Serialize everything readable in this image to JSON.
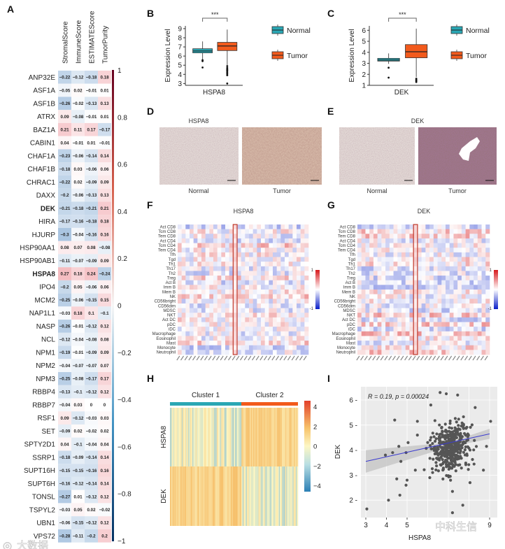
{
  "panel_labels": [
    "A",
    "B",
    "C",
    "D",
    "E",
    "F",
    "G",
    "H",
    "I"
  ],
  "watermarks": [
    "大数据",
    "中科生信"
  ],
  "colors": {
    "normal": "#2aa7b4",
    "tumor": "#f25a1c",
    "sig": "#e0303a",
    "corr_pos": "#c0392b",
    "corr_neg": "#2c5f9e",
    "highlight_dek": "#2cb5c0",
    "highlight_hspa8": "#e05a1a"
  },
  "chart_data": [
    {
      "panel": "A",
      "type": "heatmap",
      "columns": [
        "StromalScore",
        "ImmuneScore",
        "ESTIMATEScore",
        "TumorPurity"
      ],
      "highlight_rows": {
        "DEK": "highlight_dek",
        "HSPA8": "highlight_hspa8"
      },
      "colorbar_ticks": [
        "1",
        "0.8",
        "0.6",
        "0.4",
        "0.2",
        "0",
        "−0.2",
        "−0.4",
        "−0.6",
        "−0.8",
        "−1"
      ],
      "rows": [
        {
          "gene": "ANP32E",
          "values": [
            -0.22,
            -0.12,
            -0.18,
            0.18
          ]
        },
        {
          "gene": "ASF1A",
          "values": [
            -0.05,
            0.02,
            -0.01,
            0.01
          ]
        },
        {
          "gene": "ASF1B",
          "values": [
            -0.26,
            -0.02,
            -0.13,
            0.13
          ]
        },
        {
          "gene": "ATRX",
          "values": [
            0.09,
            -0.08,
            -0.01,
            0.01
          ]
        },
        {
          "gene": "BAZ1A",
          "values": [
            0.21,
            0.11,
            0.17,
            -0.17
          ]
        },
        {
          "gene": "CABIN1",
          "values": [
            0.04,
            -0.01,
            0.01,
            -0.01
          ]
        },
        {
          "gene": "CHAF1A",
          "values": [
            -0.23,
            -0.06,
            -0.14,
            0.14
          ]
        },
        {
          "gene": "CHAF1B",
          "values": [
            -0.18,
            0.03,
            -0.06,
            0.06
          ]
        },
        {
          "gene": "CHRAC1",
          "values": [
            -0.22,
            0.02,
            -0.09,
            0.09
          ]
        },
        {
          "gene": "DAXX",
          "values": [
            -0.2,
            -0.06,
            -0.13,
            0.13
          ]
        },
        {
          "gene": "DEK",
          "values": [
            -0.21,
            -0.18,
            -0.21,
            0.21
          ]
        },
        {
          "gene": "HIRA",
          "values": [
            -0.17,
            -0.16,
            -0.18,
            0.18
          ]
        },
        {
          "gene": "HJURP",
          "values": [
            -0.3,
            -0.04,
            -0.16,
            0.16
          ]
        },
        {
          "gene": "HSP90AA1",
          "values": [
            0.08,
            0.07,
            0.08,
            -0.08
          ]
        },
        {
          "gene": "HSP90AB1",
          "values": [
            -0.11,
            -0.07,
            -0.09,
            0.09
          ]
        },
        {
          "gene": "HSPA8",
          "values": [
            0.27,
            0.18,
            0.24,
            -0.24
          ]
        },
        {
          "gene": "IPO4",
          "values": [
            -0.2,
            0.05,
            -0.06,
            0.06
          ]
        },
        {
          "gene": "MCM2",
          "values": [
            -0.25,
            -0.06,
            -0.15,
            0.15
          ]
        },
        {
          "gene": "NAP1L1",
          "values": [
            -0.03,
            0.18,
            0.1,
            -0.1
          ]
        },
        {
          "gene": "NASP",
          "values": [
            -0.26,
            -0.01,
            -0.12,
            0.12
          ]
        },
        {
          "gene": "NCL",
          "values": [
            -0.12,
            -0.04,
            -0.08,
            0.08
          ]
        },
        {
          "gene": "NPM1",
          "values": [
            -0.19,
            -0.01,
            -0.09,
            0.09
          ]
        },
        {
          "gene": "NPM2",
          "values": [
            -0.04,
            -0.07,
            -0.07,
            0.07
          ]
        },
        {
          "gene": "NPM3",
          "values": [
            -0.25,
            -0.08,
            -0.17,
            0.17
          ]
        },
        {
          "gene": "RBBP4",
          "values": [
            -0.13,
            -0.1,
            -0.12,
            0.12
          ]
        },
        {
          "gene": "RBBP7",
          "values": [
            -0.04,
            0.03,
            0,
            0
          ]
        },
        {
          "gene": "RSF1",
          "values": [
            0.09,
            -0.12,
            -0.03,
            0.03
          ]
        },
        {
          "gene": "SET",
          "values": [
            -0.09,
            0.02,
            -0.02,
            0.02
          ]
        },
        {
          "gene": "SPTY2D1",
          "values": [
            0.04,
            -0.1,
            -0.04,
            0.04
          ]
        },
        {
          "gene": "SSRP1",
          "values": [
            -0.18,
            -0.09,
            -0.14,
            0.14
          ]
        },
        {
          "gene": "SUPT16H",
          "values": [
            -0.15,
            -0.15,
            -0.16,
            0.16
          ]
        },
        {
          "gene": "SUPT6H",
          "values": [
            -0.16,
            -0.12,
            -0.14,
            0.14
          ]
        },
        {
          "gene": "TONSL",
          "values": [
            -0.27,
            0.01,
            -0.12,
            0.12
          ]
        },
        {
          "gene": "TSPYL2",
          "values": [
            -0.03,
            0.05,
            0.02,
            -0.02
          ]
        },
        {
          "gene": "UBN1",
          "values": [
            -0.06,
            -0.15,
            -0.12,
            0.12
          ]
        },
        {
          "gene": "VPS72",
          "values": [
            -0.28,
            -0.11,
            -0.2,
            0.2
          ]
        }
      ]
    },
    {
      "panel": "B",
      "type": "box",
      "xlabel": "HSPA8",
      "ylabel": "Expression Level",
      "ylim": [
        2.8,
        9.3
      ],
      "yticks": [
        3,
        4,
        5,
        6,
        7,
        8,
        9
      ],
      "significance": "***",
      "legend": [
        "Normal",
        "Tumor"
      ],
      "boxes": [
        {
          "group": "Normal",
          "whisker_low": 5.6,
          "q1": 6.35,
          "median": 6.55,
          "q3": 6.8,
          "whisker_high": 7.6,
          "outliers": [
            4.75,
            5.45,
            5.55
          ]
        },
        {
          "group": "Tumor",
          "whisker_low": 5.0,
          "q1": 6.6,
          "median": 7.1,
          "q3": 7.5,
          "whisker_high": 8.9,
          "outliers": [
            4.9,
            4.7,
            4.55,
            4.45,
            4.35,
            4.2,
            4.05,
            3.9,
            3.0
          ]
        }
      ]
    },
    {
      "panel": "C",
      "type": "box",
      "xlabel": "DEK",
      "ylabel": "Expression Level",
      "ylim": [
        1,
        6.4
      ],
      "yticks": [
        1,
        2,
        3,
        4,
        5,
        6
      ],
      "significance": "***",
      "legend": [
        "Normal",
        "Tumor"
      ],
      "boxes": [
        {
          "group": "Normal",
          "whisker_low": 2.95,
          "q1": 3.2,
          "median": 3.3,
          "q3": 3.45,
          "whisker_high": 3.9,
          "outliers": [
            2.6,
            1.7
          ]
        },
        {
          "group": "Tumor",
          "whisker_low": 1.75,
          "q1": 3.5,
          "median": 4.05,
          "q3": 4.7,
          "whisker_high": 6.15,
          "outliers": [
            1.6,
            1.5,
            1.4,
            1.3
          ]
        }
      ]
    },
    {
      "panel": "F",
      "type": "heatmap",
      "title": "HSPA8",
      "n_columns": 33,
      "highlight_column": 14,
      "colorbar_ticks": [
        "1",
        "-1"
      ],
      "seed": 11,
      "rows": [
        "Act CD8",
        "Tcm CD8",
        "Tem CD8",
        "Act CD4",
        "Tcm CD4",
        "Tem CD4",
        "Tfh",
        "Tgd",
        "Th1",
        "Th17",
        "Th2",
        "Treg",
        "Act B",
        "Imm B",
        "Mem B",
        "NK",
        "CD56bright",
        "CD56dim",
        "MDSC",
        "NKT",
        "Act DC",
        "pDC",
        "iDC",
        "Macrophage",
        "Eosinophil",
        "Mast",
        "Monocyte",
        "Neutrophil"
      ]
    },
    {
      "panel": "G",
      "type": "heatmap",
      "title": "DEK",
      "n_columns": 33,
      "highlight_column": 14,
      "colorbar_ticks": [
        "1",
        "-1"
      ],
      "seed": 29,
      "rows": [
        "Act CD8",
        "Tcm CD8",
        "Tem CD8",
        "Act CD4",
        "Tcm CD4",
        "Tem CD4",
        "Tfh",
        "Tgd",
        "Th1",
        "Th17",
        "Th2",
        "Treg",
        "Act B",
        "Imm B",
        "Mem B",
        "NK",
        "CD56bright",
        "CD56dim",
        "MDSC",
        "NKT",
        "Act DC",
        "pDC",
        "iDC",
        "Macrophage",
        "Eosinophil",
        "Mast",
        "Monocyte",
        "Neutrophil"
      ]
    },
    {
      "panel": "H",
      "type": "heatmap",
      "clusters": [
        "Cluster 1",
        "Cluster 2"
      ],
      "rows": [
        "HSPA8",
        "DEK"
      ],
      "colorbar_ticks": [
        "4",
        "2",
        "0",
        "−2",
        "−4"
      ],
      "value_range": [
        -4.5,
        4.5
      ]
    },
    {
      "panel": "I",
      "type": "scatter",
      "xlabel": "HSPA8",
      "ylabel": "DEK",
      "annotation": "R = 0.19, p = 0.00024",
      "xlim": [
        2.9,
        9.2
      ],
      "ylim": [
        1.3,
        6.5
      ],
      "xticks": [
        "3",
        "4",
        "5",
        "9"
      ],
      "yticks": [
        "2",
        "3",
        "4",
        "5",
        "6"
      ],
      "regression": {
        "x": [
          3,
          9
        ],
        "y": [
          3.55,
          4.65
        ]
      },
      "cloud": {
        "n": 380,
        "x_mean": 7.1,
        "x_sd": 0.75,
        "y_mean": 4.15,
        "y_sd": 0.8
      },
      "points": [
        [
          3.05,
          1.65
        ],
        [
          4.1,
          2.0
        ],
        [
          4.4,
          5.2
        ],
        [
          4.5,
          2.85
        ],
        [
          4.65,
          2.2
        ],
        [
          4.6,
          4.15
        ],
        [
          4.7,
          3.55
        ],
        [
          4.95,
          3.9
        ],
        [
          4.95,
          2.6
        ],
        [
          5.0,
          2.8
        ],
        [
          5.05,
          4.3
        ],
        [
          5.4,
          3.2
        ],
        [
          5.5,
          4.6
        ],
        [
          5.5,
          5.15
        ],
        [
          6.15,
          5.8
        ],
        [
          6.1,
          2.9
        ],
        [
          6.6,
          6.3
        ],
        [
          6.9,
          6.25
        ],
        [
          7.2,
          1.5
        ],
        [
          7.2,
          2.35
        ],
        [
          7.45,
          6.2
        ],
        [
          7.7,
          1.8
        ],
        [
          8.05,
          2.7
        ],
        [
          8.7,
          3.2
        ],
        [
          9.05,
          5.15
        ],
        [
          8.85,
          4.15
        ],
        [
          8.3,
          5.7
        ],
        [
          3.95,
          3.8
        ],
        [
          4.3,
          3.9
        ]
      ]
    }
  ],
  "panel_D": {
    "title": "HSPA8",
    "captions": [
      "Normal",
      "Tumor"
    ]
  },
  "panel_E": {
    "title": "DEK",
    "captions": [
      "Normal",
      "Tumor"
    ]
  },
  "panel_F_title": "HSPA8",
  "panel_G_title": "DEK"
}
